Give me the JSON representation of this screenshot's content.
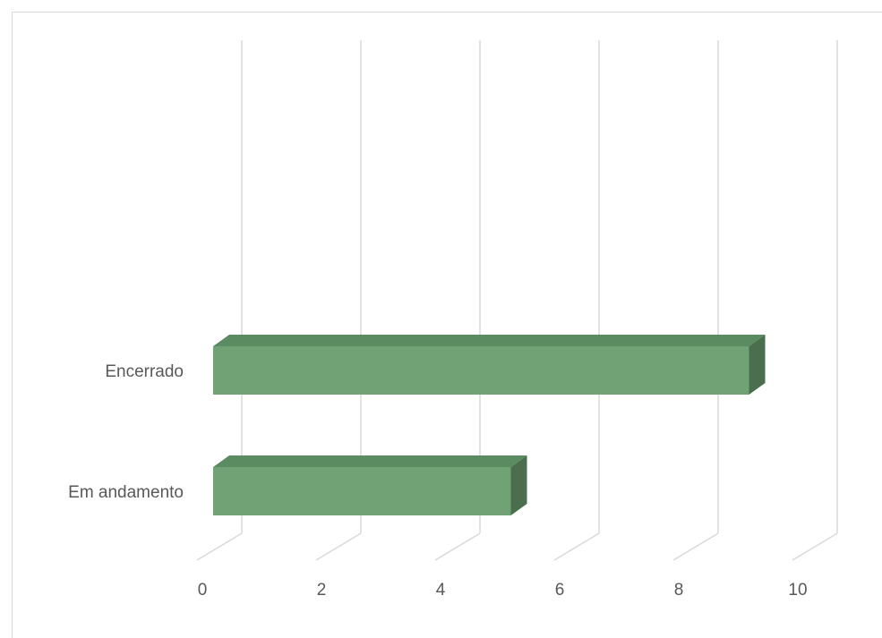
{
  "chart_data": {
    "type": "bar",
    "orientation": "horizontal",
    "style": "3d",
    "categories": [
      "Encerrado",
      "Em andamento"
    ],
    "values": [
      9,
      5
    ],
    "xlim": [
      0,
      10
    ],
    "x_ticks": [
      "0",
      "2",
      "4",
      "6",
      "8",
      "10"
    ],
    "grid": true,
    "legend": "none",
    "title": "",
    "xlabel": "",
    "ylabel": ""
  },
  "colors": {
    "bar_front": "#70a275",
    "bar_top": "#5b8c61",
    "bar_side": "#4a6e4e",
    "gridline": "#d9d9d9",
    "text": "#595959"
  }
}
